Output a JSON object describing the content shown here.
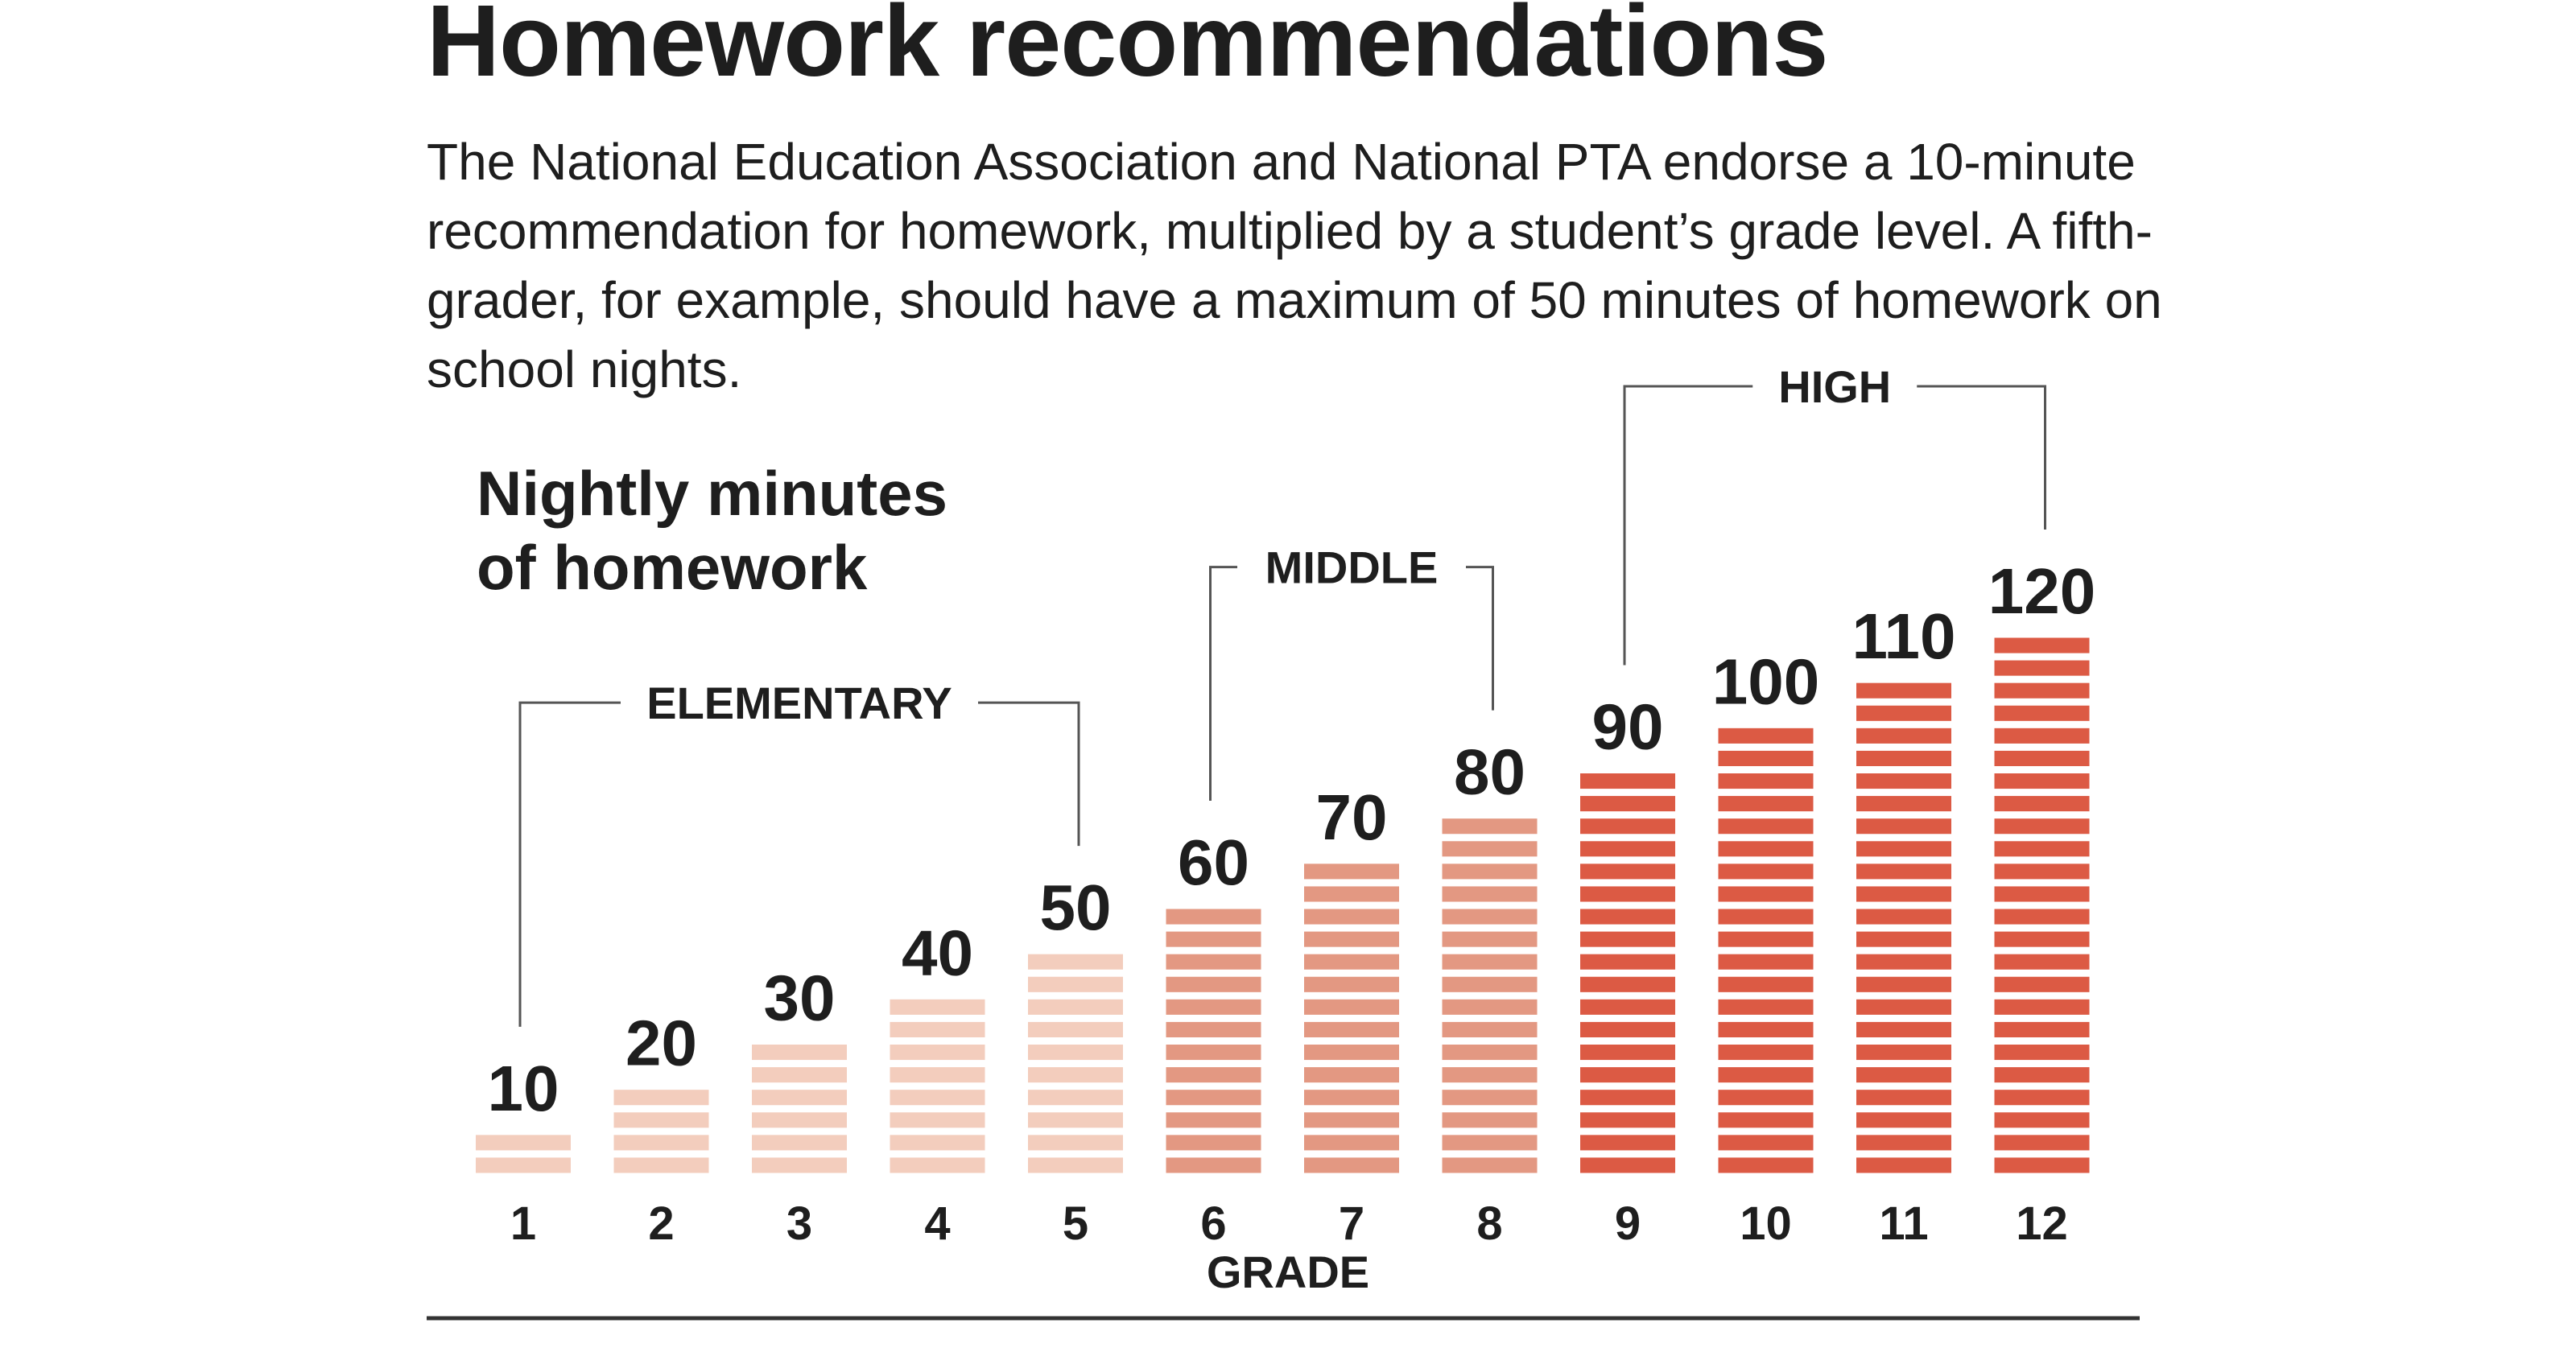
{
  "title": "Homework recommendations",
  "subtitle": "The National Education Association and National PTA endorse a 10-minute recommendation for homework, multiplied by a student’s grade level. A fifth-grader, for example, should have a maximum of 50 minutes of homework on school nights.",
  "chart_data": {
    "type": "bar",
    "title": "Nightly minutes of homework",
    "title_lines": [
      "Nightly minutes",
      "of homework"
    ],
    "xlabel": "GRADE",
    "ylabel": "",
    "categories": [
      "1",
      "2",
      "3",
      "4",
      "5",
      "6",
      "7",
      "8",
      "9",
      "10",
      "11",
      "12"
    ],
    "values": [
      10,
      20,
      30,
      40,
      50,
      60,
      70,
      80,
      90,
      100,
      110,
      120
    ],
    "value_labels": [
      "10",
      "20",
      "30",
      "40",
      "50",
      "60",
      "70",
      "80",
      "90",
      "100",
      "110",
      "120"
    ],
    "ylim": [
      0,
      120
    ],
    "grid": false,
    "legend": "none",
    "groups": [
      {
        "label": "ELEMENTARY",
        "from": "1",
        "to": "5",
        "color": "#f3cdbd"
      },
      {
        "label": "MIDDLE",
        "from": "6",
        "to": "8",
        "color": "#e39882"
      },
      {
        "label": "HIGH",
        "from": "9",
        "to": "12",
        "color": "#dc5a44"
      }
    ]
  }
}
